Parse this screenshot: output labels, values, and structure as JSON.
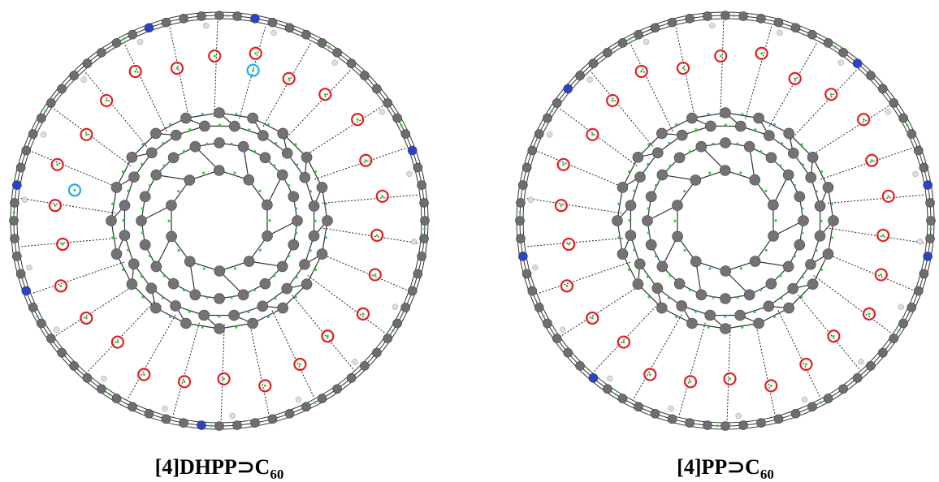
{
  "panels": [
    {
      "label": "[4]DHPP⊃C",
      "subscript": "60"
    },
    {
      "label": "[4]PP⊃C",
      "subscript": "60"
    }
  ]
}
